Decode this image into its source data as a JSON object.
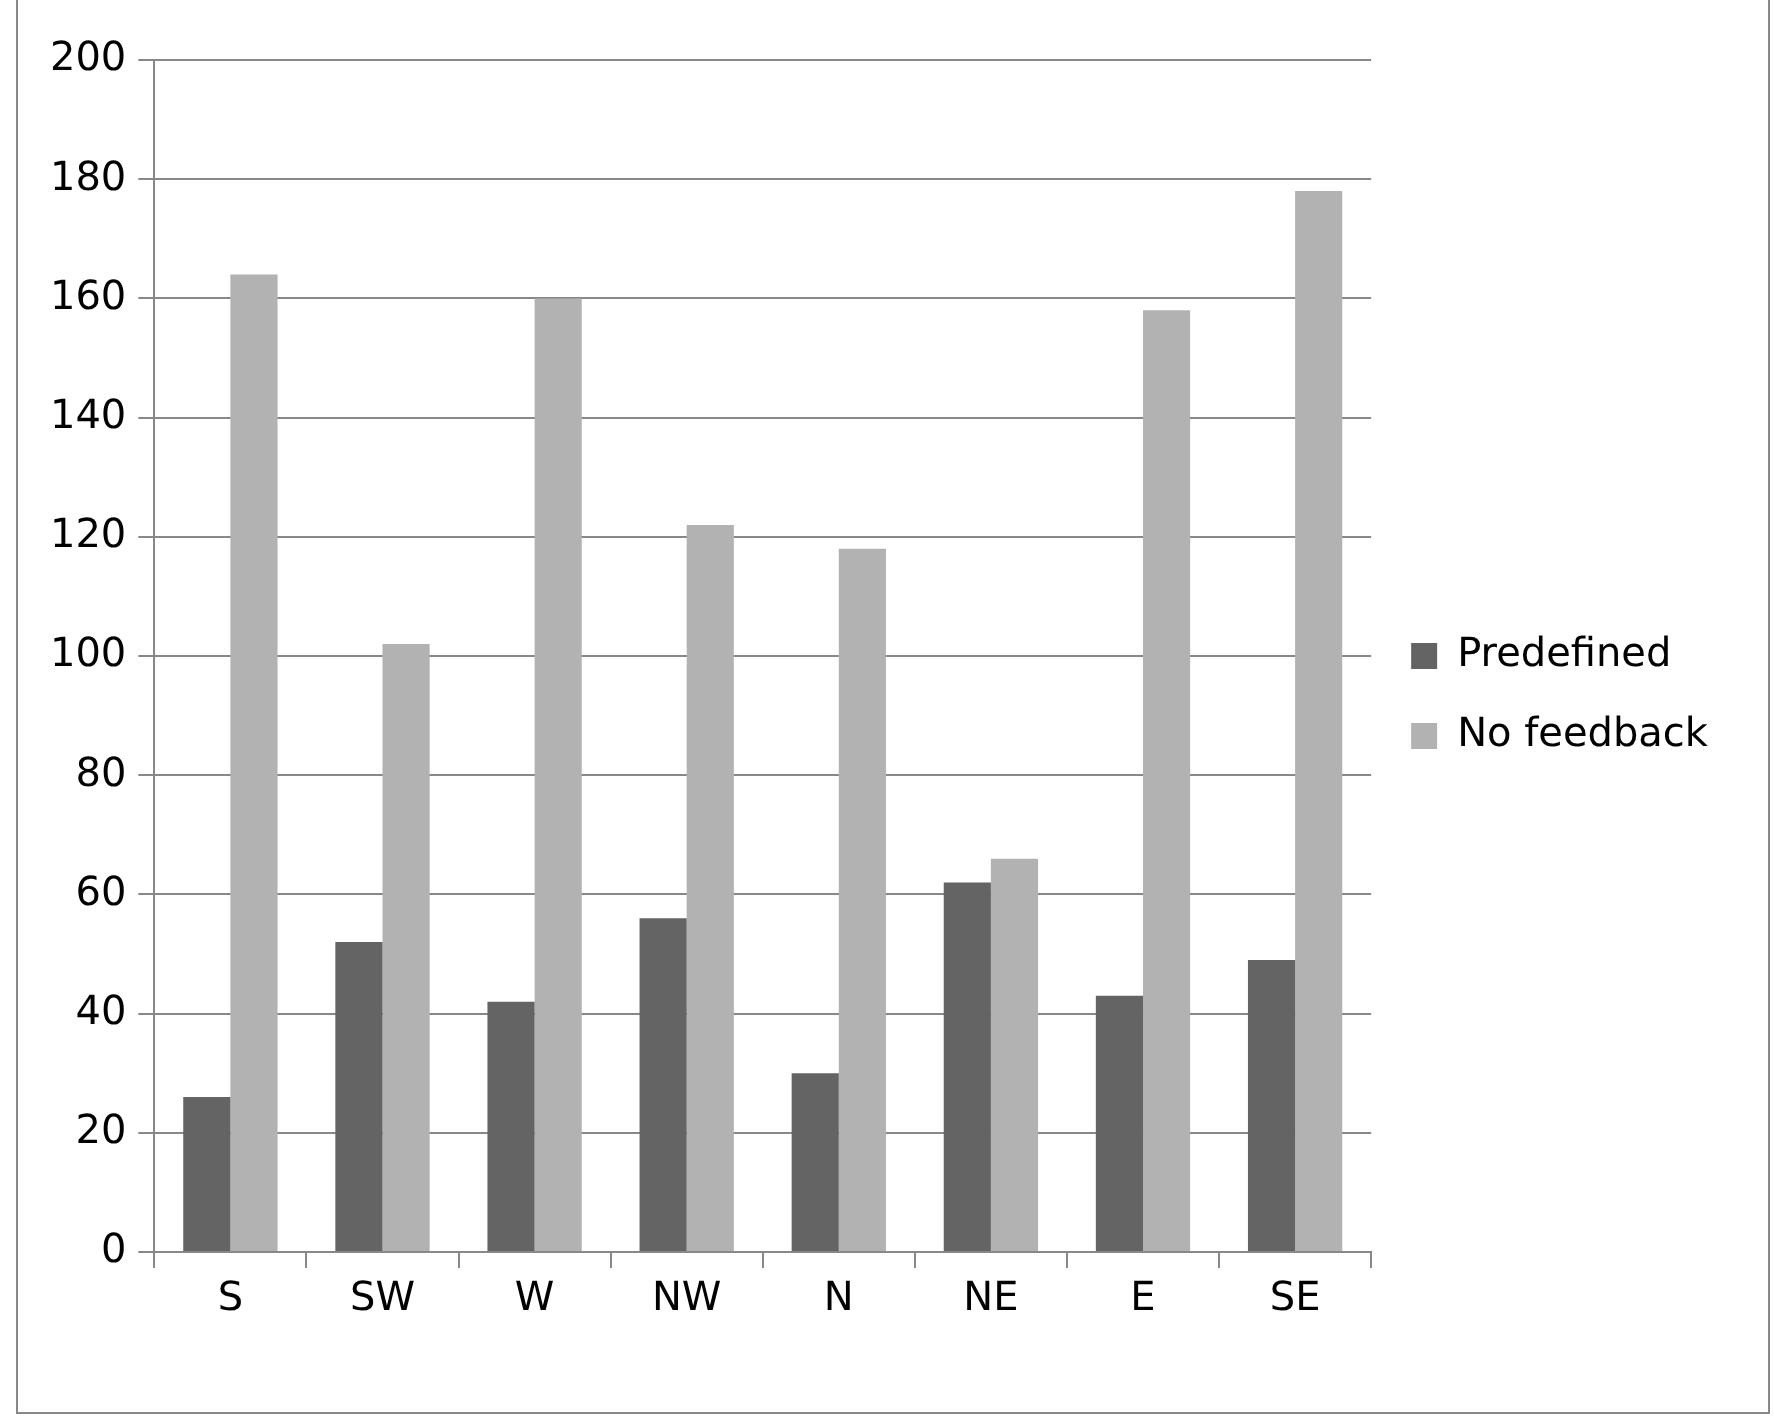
{
  "chart_data": {
    "type": "bar",
    "categories": [
      "S",
      "SW",
      "W",
      "NW",
      "N",
      "NE",
      "E",
      "SE"
    ],
    "series": [
      {
        "name": "Predefined",
        "color": "#646464",
        "values": [
          26,
          52,
          42,
          56,
          30,
          62,
          43,
          49
        ]
      },
      {
        "name": "No feedback",
        "color": "#b2b2b2",
        "values": [
          164,
          102,
          160,
          122,
          118,
          66,
          158,
          178
        ]
      }
    ],
    "ylim": [
      0,
      200
    ],
    "yticks": [
      0,
      20,
      40,
      60,
      80,
      100,
      120,
      140,
      160,
      180,
      200
    ],
    "grid": "y",
    "legend": "right"
  }
}
